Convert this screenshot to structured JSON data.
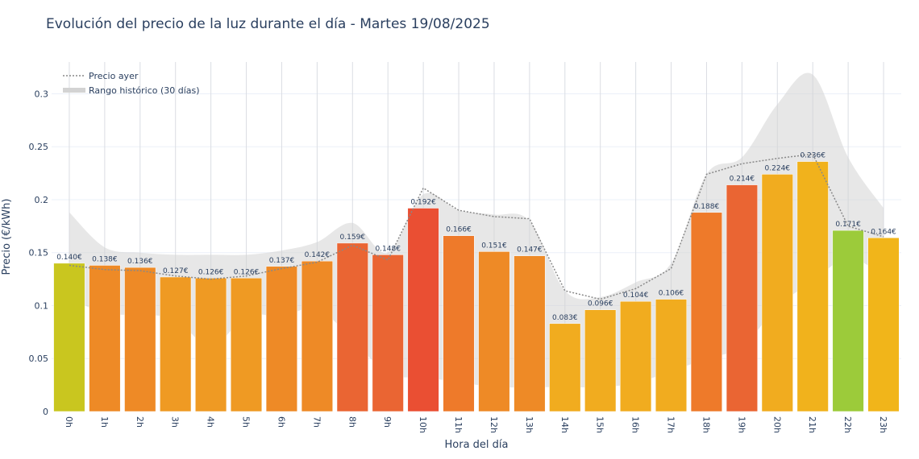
{
  "chart_data": {
    "type": "bar",
    "title": "Evolución del precio de la luz durante el día - Martes 19/08/2025",
    "xlabel": "Hora del día",
    "ylabel": "Precio (€/kWh)",
    "ylim": [
      0,
      0.33
    ],
    "yticks": [
      0,
      0.05,
      0.1,
      0.15,
      0.2,
      0.25,
      0.3
    ],
    "ytick_labels": [
      "0",
      "0.05",
      "0.1",
      "0.15",
      "0.2",
      "0.25",
      "0.3"
    ],
    "grid": true,
    "legend_position": "top-left",
    "categories": [
      "0h",
      "1h",
      "2h",
      "3h",
      "4h",
      "5h",
      "6h",
      "7h",
      "8h",
      "9h",
      "10h",
      "11h",
      "12h",
      "13h",
      "14h",
      "15h",
      "16h",
      "17h",
      "18h",
      "19h",
      "20h",
      "21h",
      "22h",
      "23h"
    ],
    "values": [
      0.14,
      0.138,
      0.136,
      0.127,
      0.126,
      0.126,
      0.137,
      0.142,
      0.159,
      0.148,
      0.192,
      0.166,
      0.151,
      0.147,
      0.083,
      0.096,
      0.104,
      0.106,
      0.188,
      0.214,
      0.224,
      0.236,
      0.171,
      0.164
    ],
    "data_labels": [
      "0.140€",
      "0.138€",
      "0.136€",
      "0.127€",
      "0.126€",
      "0.126€",
      "0.137€",
      "0.142€",
      "0.159€",
      "0.148€",
      "0.192€",
      "0.166€",
      "0.151€",
      "0.147€",
      "0.083€",
      "0.096€",
      "0.104€",
      "0.106€",
      "0.188€",
      "0.214€",
      "0.224€",
      "0.236€",
      "0.171€",
      "0.164€"
    ],
    "bar_colors": [
      "#c9c61f",
      "#ee8a26",
      "#ee8a26",
      "#ef9a23",
      "#ef9a23",
      "#ef9a23",
      "#ee8a26",
      "#ee8a26",
      "#ea6533",
      "#ea6533",
      "#ea4f33",
      "#ee7a2a",
      "#ee8a26",
      "#ee8a26",
      "#f1ac1f",
      "#f1ac1f",
      "#f1ac1f",
      "#f1ac1f",
      "#ee7a2a",
      "#ea6533",
      "#f1ac1f",
      "#f1b21c",
      "#9ccb3a",
      "#f1b51a"
    ],
    "series": [
      {
        "name": "Precio ayer",
        "values": [
          0.138,
          0.134,
          0.133,
          0.128,
          0.125,
          0.128,
          0.135,
          0.141,
          0.157,
          0.143,
          0.211,
          0.19,
          0.184,
          0.182,
          0.114,
          0.106,
          0.116,
          0.135,
          0.224,
          0.234,
          0.239,
          0.243,
          0.175,
          0.165
        ],
        "color": "#888888",
        "style": "dotted"
      },
      {
        "name": "Rango histórico (30 días)",
        "upper": [
          0.188,
          0.155,
          0.15,
          0.148,
          0.148,
          0.148,
          0.152,
          0.16,
          0.178,
          0.15,
          0.205,
          0.19,
          0.186,
          0.18,
          0.114,
          0.108,
          0.122,
          0.14,
          0.224,
          0.24,
          0.29,
          0.318,
          0.24,
          0.192
        ],
        "lower": [
          0.107,
          0.093,
          0.091,
          0.087,
          0.061,
          0.09,
          0.09,
          0.097,
          0.068,
          0.036,
          0.032,
          0.028,
          0.023,
          0.023,
          0.023,
          0.023,
          0.027,
          0.038,
          0.05,
          0.061,
          0.099,
          0.123,
          0.145,
          0.128
        ],
        "color": "#d3d3d3"
      }
    ]
  }
}
